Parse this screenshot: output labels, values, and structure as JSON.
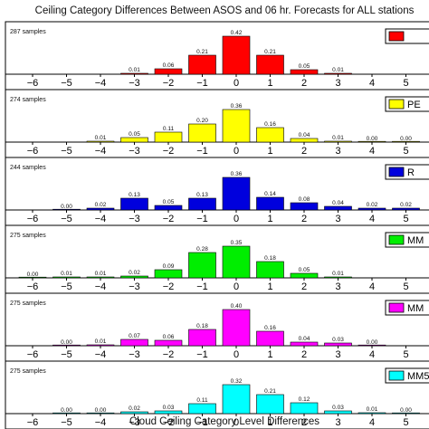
{
  "title": "Ceiling Category Differences Between ASOS and 06 hr. Forecasts for ALL stations",
  "xlabel": "Cloud Ceiling Category Level Differences",
  "chart_data": {
    "type": "bar",
    "title": "Ceiling Category Differences Between ASOS and 06 hr. Forecasts for ALL stations",
    "xlabel": "Cloud Ceiling Category Level Differences",
    "ylabel": "",
    "categories": [
      -6,
      -5,
      -4,
      -3,
      -2,
      -1,
      0,
      1,
      2,
      3,
      4,
      5
    ],
    "ylim": [
      0,
      0.5
    ],
    "grid": false,
    "legend_placement": "top-right",
    "panels": [
      {
        "samples": "287 samples",
        "legend": "",
        "color": "#ff0000",
        "values": [
          null,
          null,
          null,
          0.01,
          0.06,
          0.21,
          0.42,
          0.21,
          0.05,
          0.01,
          null,
          null
        ],
        "labels": [
          "",
          "",
          "",
          "0.01",
          "0.06",
          "0.21",
          "0.42",
          "0.21",
          "0.05",
          "0.01",
          "",
          ""
        ]
      },
      {
        "samples": "274 samples",
        "legend": "PE",
        "color": "#ffff00",
        "values": [
          null,
          null,
          0.01,
          0.05,
          0.11,
          0.2,
          0.36,
          0.16,
          0.04,
          0.01,
          0.0,
          0.0
        ],
        "labels": [
          "",
          "",
          "0.01",
          "0.05",
          "0.11",
          "0.20",
          "0.36",
          "0.16",
          "0.04",
          "0.01",
          "0.00",
          "0.00"
        ]
      },
      {
        "samples": "244 samples",
        "legend": "R",
        "color": "#0000dd",
        "values": [
          null,
          0.0,
          0.02,
          0.13,
          0.05,
          0.13,
          0.36,
          0.14,
          0.08,
          0.04,
          0.02,
          0.02
        ],
        "labels": [
          "",
          "0.00",
          "0.02",
          "0.13",
          "0.05",
          "0.13",
          "0.36",
          "0.14",
          "0.08",
          "0.04",
          "0.02",
          "0.02"
        ]
      },
      {
        "samples": "275 samples",
        "legend": "MM",
        "color": "#00ee00",
        "values": [
          0.0,
          0.01,
          0.01,
          0.02,
          0.09,
          0.28,
          0.35,
          0.18,
          0.05,
          0.01,
          null,
          null
        ],
        "labels": [
          "0.00",
          "0.01",
          "0.01",
          "0.02",
          "0.09",
          "0.28",
          "0.35",
          "0.18",
          "0.05",
          "0.01",
          "",
          ""
        ]
      },
      {
        "samples": "275 samples",
        "legend": "MM",
        "color": "#ff00ff",
        "values": [
          null,
          0.0,
          0.01,
          0.07,
          0.06,
          0.18,
          0.4,
          0.16,
          0.04,
          0.03,
          0.0,
          null
        ],
        "labels": [
          "",
          "0.00",
          "0.01",
          "0.07",
          "0.06",
          "0.18",
          "0.40",
          "0.16",
          "0.04",
          "0.03",
          "0.00",
          ""
        ]
      },
      {
        "samples": "275 samples",
        "legend": "MM5",
        "color": "#00ffff",
        "values": [
          null,
          0.0,
          0.0,
          0.02,
          0.03,
          0.11,
          0.32,
          0.21,
          0.12,
          0.03,
          0.01,
          0.0
        ],
        "labels": [
          "",
          "0.00",
          "0.00",
          "0.02",
          "0.03",
          "0.11",
          "0.32",
          "0.21",
          "0.12",
          "0.03",
          "0.01",
          "0.00"
        ]
      }
    ]
  }
}
